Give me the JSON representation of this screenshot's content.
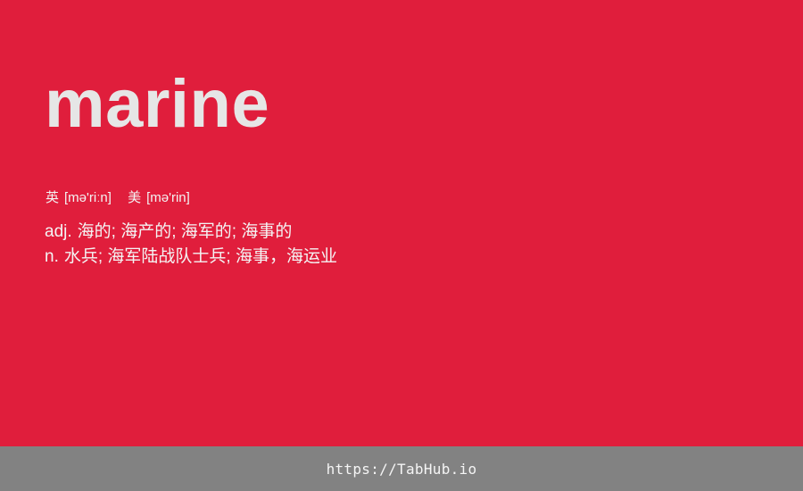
{
  "entry": {
    "word": "marine",
    "phonetics": [
      {
        "tag": "英",
        "ipa": "[mə'riːn]"
      },
      {
        "tag": "美",
        "ipa": "[mə'rin]"
      }
    ],
    "definitions": [
      {
        "pos": "adj.",
        "meaning": "海的; 海产的; 海军的; 海事的"
      },
      {
        "pos": "n.",
        "meaning": "水兵; 海军陆战队士兵; 海事，海运业"
      }
    ]
  },
  "footer": {
    "link_text": "https://TabHub.io"
  },
  "colors": {
    "background": "#e01e3c",
    "footer_background": "#828282",
    "word_text": "#e6e6e6"
  }
}
